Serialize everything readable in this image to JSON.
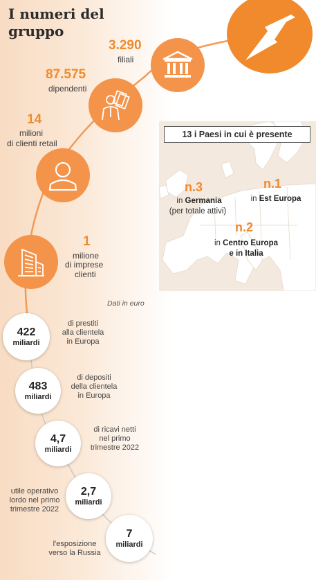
{
  "title": "I numeri del gruppo",
  "stats": {
    "filiali": {
      "value": "3.290",
      "label": "filiali"
    },
    "dipendenti": {
      "value": "87.575",
      "label": "dipendenti"
    },
    "clienti_retail": {
      "value": "14",
      "label_1": "milioni",
      "label_2": "di clienti retail"
    },
    "imprese": {
      "value": "1",
      "label_1": "milione",
      "label_2": "di imprese",
      "label_3": "clienti"
    }
  },
  "countries": {
    "box": "13 i Paesi in cui è presente",
    "rank3": {
      "num": "n.3",
      "pre": "in",
      "bold": "Germania",
      "sub": "(per totale attivi)"
    },
    "rank1": {
      "num": "n.1",
      "pre": "in",
      "bold": "Est Europa"
    },
    "rank2": {
      "num": "n.2",
      "pre": "in",
      "bold_1": "Centro Europa",
      "bold_2": "e in Italia"
    }
  },
  "note": "Dati in euro",
  "bubbles": [
    {
      "num": "422",
      "unit": "miliardi",
      "desc_1": "di prestiti",
      "desc_2": "alla clientela",
      "desc_3": "in Europa"
    },
    {
      "num": "483",
      "unit": "miliardi",
      "desc_1": "di depositi",
      "desc_2": "della clientela",
      "desc_3": "in Europa"
    },
    {
      "num": "4,7",
      "unit": "miliardi",
      "desc_1": "di ricavi netti",
      "desc_2": "nel primo",
      "desc_3": "trimestre 2022"
    },
    {
      "num": "2,7",
      "unit": "miliardi",
      "desc_1": "utile operativo",
      "desc_2": "lordo nel primo",
      "desc_3": "trimestre 2022"
    },
    {
      "num": "7",
      "unit": "miliardi",
      "desc_1": "l'esposizione",
      "desc_2": "verso la Russia"
    }
  ],
  "colors": {
    "accent": "#f08a2c",
    "icon_bg": "#f4934a",
    "line": "#f29a55"
  },
  "icons": [
    "bank-icon",
    "employee-icon",
    "person-icon",
    "building-icon",
    "logo-icon"
  ]
}
